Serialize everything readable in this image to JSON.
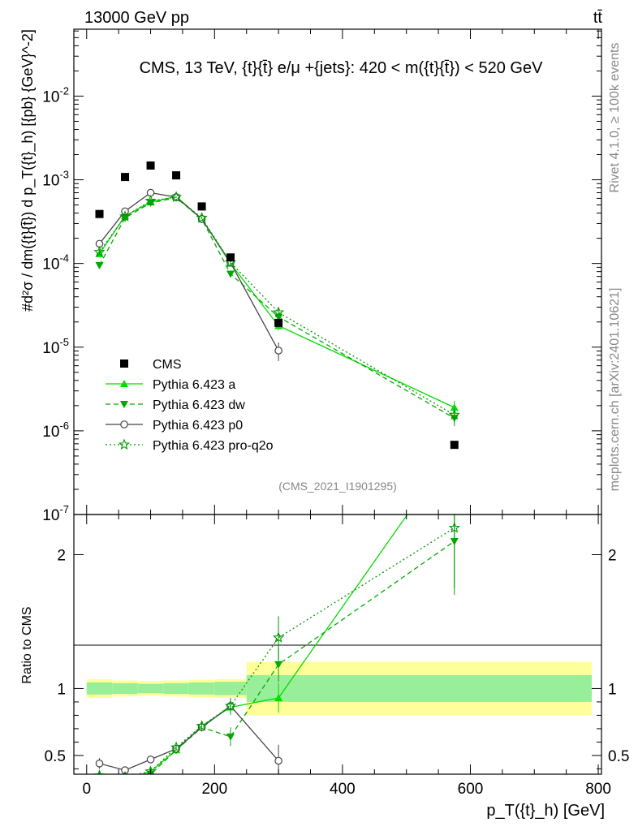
{
  "header": {
    "energy_label": "13000 GeV pp",
    "process_label": "tt̄",
    "rivet_label": "Rivet 4.1.0, ≥ 100k events",
    "mcplots_label": "mcplots.cern.ch [arXiv:2401.10621]"
  },
  "chart_data": {
    "type": "scatter",
    "title": "CMS, 13 TeV, {t}{t̄} e/μ +{jets}: 420 < m({t}{t̄}) < 520 GeV",
    "analysis_id": "(CMS_2021_I1901295)",
    "xlabel": "p_T({t}_h) [GeV]",
    "ylabel": "#d²σ / dm({t}{t̄}) d p_T({t}_h) [{pb} {GeV}^-2]",
    "ratio_ylabel": "Ratio to CMS",
    "xlim": [
      -20,
      805
    ],
    "ylim": [
      1e-07,
      0.063
    ],
    "yscale": "log",
    "x_ticks": [
      0,
      200,
      400,
      600,
      800
    ],
    "x_tick_labels": [
      "0",
      "200",
      "400",
      "600",
      "800"
    ],
    "y_tick_labels": [
      {
        "value": 1e-07,
        "label": "10^-7"
      },
      {
        "value": 1e-06,
        "label": "10^-6"
      },
      {
        "value": 1e-05,
        "label": "10^-5"
      },
      {
        "value": 0.0001,
        "label": "10^-4"
      },
      {
        "value": 0.001,
        "label": "10^-3"
      },
      {
        "value": 0.01,
        "label": "10^-2"
      }
    ],
    "ratio_ylim": [
      0.36,
      2.3
    ],
    "ratio_y_ticks": [
      {
        "value": 0.5,
        "label": "0.5"
      },
      {
        "value": 1,
        "label": "1"
      },
      {
        "value": 2,
        "label": "2"
      }
    ],
    "bins": [
      [
        0,
        40
      ],
      [
        40,
        80
      ],
      [
        80,
        120
      ],
      [
        120,
        160
      ],
      [
        160,
        200
      ],
      [
        200,
        250
      ],
      [
        250,
        350
      ],
      [
        350,
        800
      ]
    ],
    "x": [
      20,
      60,
      100,
      140,
      180,
      225,
      300,
      575
    ],
    "data": {
      "name": "CMS",
      "values": [
        0.00039,
        0.00108,
        0.00148,
        0.00113,
        0.00048,
        0.000118,
        1.95e-05,
        6.8e-07
      ],
      "band_inner": [
        0.045,
        0.04,
        0.035,
        0.04,
        0.045,
        0.05,
        0.1,
        0.1
      ],
      "band_outer": [
        0.07,
        0.06,
        0.055,
        0.06,
        0.065,
        0.07,
        0.2,
        0.2
      ]
    },
    "series": [
      {
        "name": "Pythia 6.423 a",
        "color": "#00dd00",
        "style": "solid",
        "marker": "triangle-up",
        "values": [
          0.00013,
          0.00037,
          0.00054,
          0.00063,
          0.00034,
          0.0001,
          1.8e-05,
          1.9e-06
        ],
        "err": [
          0.08,
          0.03,
          0.02,
          0.02,
          0.03,
          0.06,
          0.12,
          0.2
        ],
        "ratio": [
          0.28,
          0.32,
          0.38,
          0.54,
          0.72,
          0.86,
          0.93,
          2.8
        ],
        "ratio_err": [
          0.04,
          0.02,
          0.02,
          0.02,
          0.03,
          0.06,
          0.11,
          0.4
        ]
      },
      {
        "name": "Pythia 6.423 dw",
        "color": "#00aa00",
        "style": "dashed",
        "marker": "triangle-down",
        "values": [
          9.5e-05,
          0.00035,
          0.00053,
          0.00061,
          0.00034,
          7.5e-05,
          2.3e-05,
          1.42e-06
        ],
        "err": [
          0.08,
          0.03,
          0.02,
          0.02,
          0.03,
          0.07,
          0.12,
          0.2
        ],
        "ratio": [
          0.24,
          0.32,
          0.36,
          0.54,
          0.71,
          0.64,
          1.18,
          2.1
        ],
        "ratio_err": [
          0.04,
          0.02,
          0.02,
          0.02,
          0.03,
          0.07,
          0.13,
          0.4
        ]
      },
      {
        "name": "Pythia 6.423 p0",
        "color": "#444444",
        "style": "solid",
        "marker": "circle-open",
        "values": [
          0.000172,
          0.00042,
          0.0007,
          0.00062,
          0.00034,
          0.000102,
          9.1e-06
        ],
        "err": [
          0.06,
          0.03,
          0.02,
          0.02,
          0.03,
          0.06,
          0.25
        ],
        "ratio": [
          0.44,
          0.39,
          0.47,
          0.55,
          0.71,
          0.87,
          0.46
        ],
        "ratio_err": [
          0.04,
          0.02,
          0.02,
          0.02,
          0.03,
          0.06,
          0.12
        ]
      },
      {
        "name": "Pythia 6.423 pro-q2o",
        "color": "#009900",
        "style": "dotted",
        "marker": "star-open",
        "values": [
          0.000137,
          0.000365,
          0.00056,
          0.00062,
          0.00035,
          0.000103,
          2.6e-05,
          1.55e-06
        ],
        "err": [
          0.08,
          0.03,
          0.02,
          0.02,
          0.03,
          0.06,
          0.12,
          0.2
        ],
        "ratio": [
          0.35,
          0.34,
          0.38,
          0.56,
          0.72,
          0.87,
          1.38,
          2.2
        ],
        "ratio_err": [
          0.04,
          0.02,
          0.02,
          0.02,
          0.03,
          0.06,
          0.16,
          0.45
        ]
      }
    ]
  }
}
